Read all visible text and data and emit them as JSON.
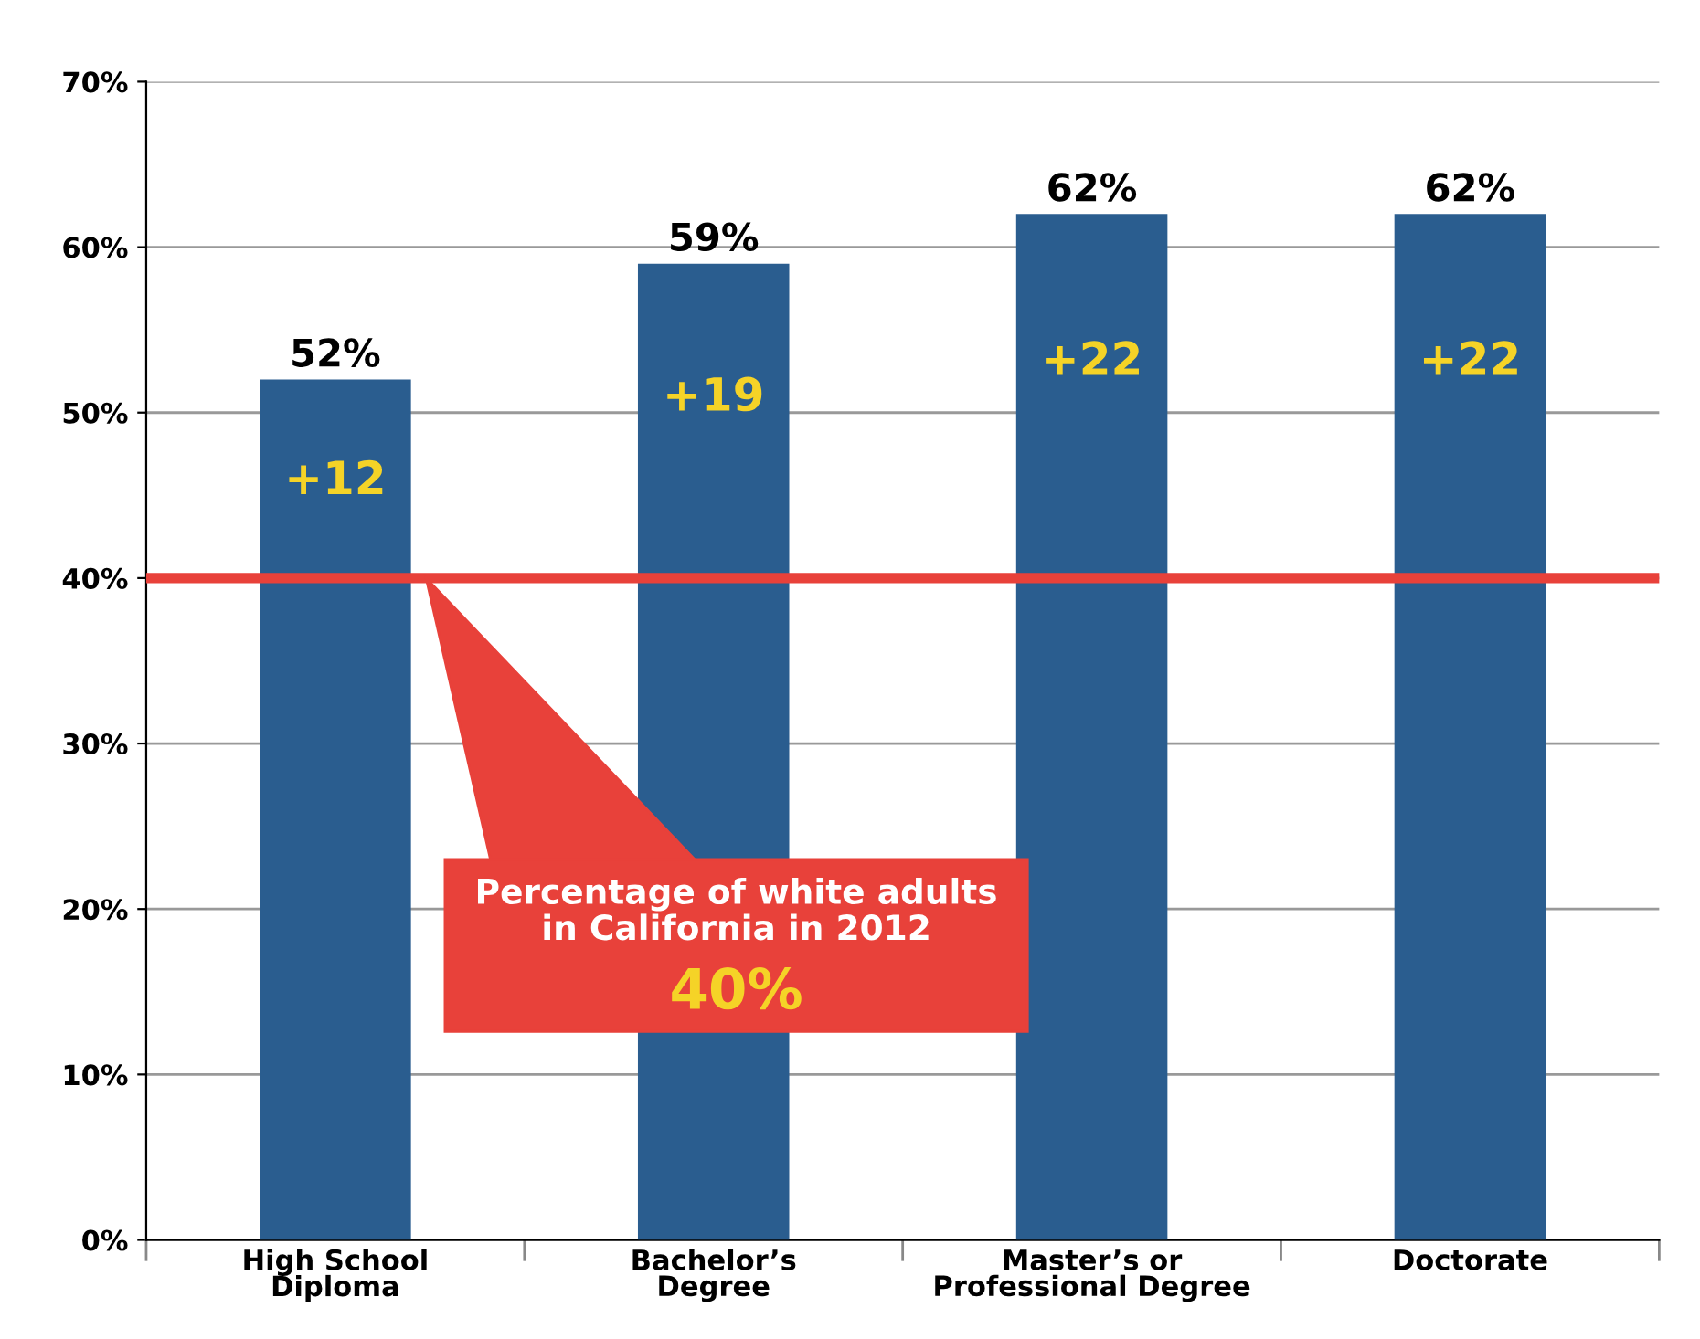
{
  "chart_data": {
    "type": "bar",
    "categories": [
      "High School\nDiploma",
      "Bachelor’s\nDegree",
      "Master’s or\nProfessional Degree",
      "Doctorate"
    ],
    "values": [
      52,
      59,
      62,
      62
    ],
    "color": "#2a5d8f",
    "value_labels": [
      "52%",
      "59%",
      "62%",
      "62%"
    ],
    "ylim": [
      0,
      70
    ],
    "yticks": [
      {
        "value": 0,
        "label": "0%"
      },
      {
        "value": 10,
        "label": "10%"
      },
      {
        "value": 20,
        "label": "20%"
      },
      {
        "value": 30,
        "label": "30%"
      },
      {
        "value": 40,
        "label": "40%"
      },
      {
        "value": 50,
        "label": "50%"
      },
      {
        "value": 60,
        "label": "60%"
      },
      {
        "value": 70,
        "label": "70%"
      }
    ],
    "grid": "y",
    "ref_lines": [
      {
        "axis": "y",
        "value": 40,
        "color": "#e8413a"
      }
    ],
    "annotations": [
      "+12",
      "+19",
      "+22",
      "+22",
      "Percentage of white adults\nin California in 2012",
      "40%"
    ]
  }
}
